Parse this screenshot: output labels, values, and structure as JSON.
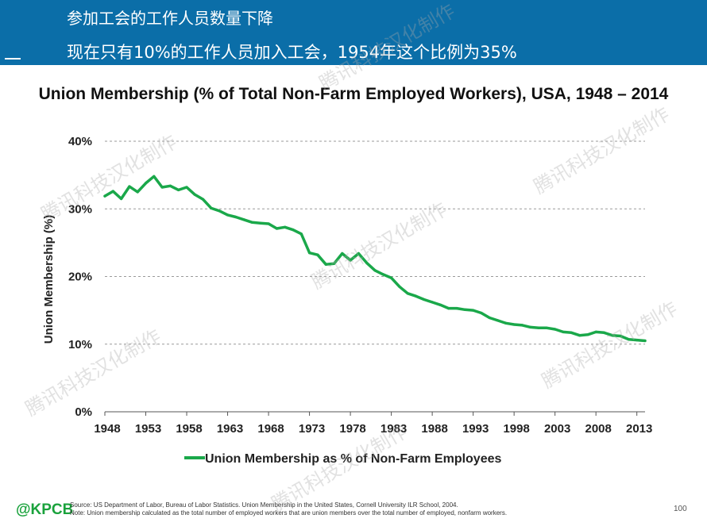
{
  "header": {
    "line1": "参加工会的工作人员数量下降",
    "line2": "现在只有10%的工作人员加入工会，1954年这个比例为35%"
  },
  "colors": {
    "header_bg": "#0b6ea8",
    "series": "#1aa84a",
    "brand": "#1aa23c"
  },
  "watermark": "腾讯科技汉化制作",
  "chart_data": {
    "type": "line",
    "title": "Union Membership (% of Total Non-Farm Employed Workers), USA, 1948 – 2014",
    "ylabel": "Union Membership (%)",
    "xlabel": "",
    "xlim": [
      1948,
      2014
    ],
    "ylim": [
      0,
      40
    ],
    "x_ticks": [
      1948,
      1953,
      1958,
      1963,
      1968,
      1973,
      1978,
      1983,
      1988,
      1993,
      1998,
      2003,
      2008,
      2013
    ],
    "x_tick_labels": [
      "1948",
      "1953",
      "1958",
      "1963",
      "1968",
      "1973",
      "1978",
      "1983",
      "1988",
      "1993",
      "1998",
      "2003",
      "2008",
      "2013"
    ],
    "y_ticks": [
      0,
      10,
      20,
      30,
      40
    ],
    "y_tick_labels": [
      "0%",
      "10%",
      "20%",
      "30%",
      "40%"
    ],
    "grid": "horizontal dashed",
    "legend_position": "bottom",
    "series": [
      {
        "name": "Union Membership as % of Non-Farm Employees",
        "x": [
          1948,
          1949,
          1950,
          1951,
          1952,
          1953,
          1954,
          1955,
          1956,
          1957,
          1958,
          1959,
          1960,
          1961,
          1962,
          1963,
          1964,
          1965,
          1966,
          1967,
          1968,
          1969,
          1970,
          1971,
          1972,
          1973,
          1974,
          1975,
          1976,
          1977,
          1978,
          1979,
          1980,
          1981,
          1982,
          1983,
          1984,
          1985,
          1986,
          1987,
          1988,
          1989,
          1990,
          1991,
          1992,
          1993,
          1994,
          1995,
          1996,
          1997,
          1998,
          1999,
          2000,
          2001,
          2002,
          2003,
          2004,
          2005,
          2006,
          2007,
          2008,
          2009,
          2010,
          2011,
          2012,
          2013,
          2014
        ],
        "y": [
          31.9,
          32.6,
          31.5,
          33.3,
          32.5,
          33.8,
          34.8,
          33.2,
          33.4,
          32.8,
          33.2,
          32.1,
          31.4,
          30.1,
          29.7,
          29.1,
          28.8,
          28.4,
          28.0,
          27.9,
          27.8,
          27.1,
          27.3,
          26.9,
          26.3,
          23.5,
          23.2,
          21.8,
          21.9,
          23.4,
          22.4,
          23.4,
          22.0,
          20.9,
          20.3,
          19.8,
          18.5,
          17.5,
          17.1,
          16.6,
          16.2,
          15.8,
          15.3,
          15.3,
          15.1,
          15.0,
          14.6,
          13.9,
          13.5,
          13.1,
          12.9,
          12.8,
          12.5,
          12.4,
          12.4,
          12.2,
          11.8,
          11.7,
          11.3,
          11.4,
          11.8,
          11.7,
          11.3,
          11.2,
          10.7,
          10.6,
          10.5
        ]
      }
    ]
  },
  "footer": {
    "logo": "@KPCB",
    "source_line1": "Source: US Department of Labor, Bureau of Labor Statistics. Union Membership in the United States, Cornell University ILR School, 2004.",
    "source_line2": "Note: Union membership calculated as the total number of employed workers that are union members over the total number of employed, nonfarm workers.",
    "page_number": "100"
  }
}
